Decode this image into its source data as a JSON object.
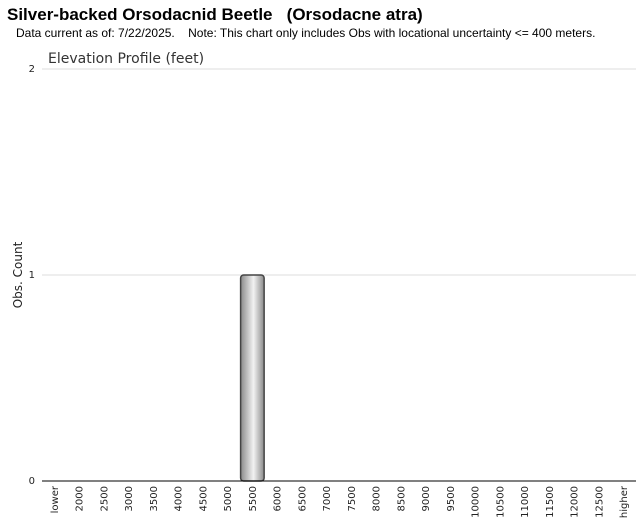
{
  "header": {
    "title": "Silver-backed Orsodacnid Beetle   (Orsodacne atra)",
    "subtitle": "Data current as of: 7/22/2025.    Note: This chart only includes Obs with locational uncertainty <= 400 meters."
  },
  "chart_data": {
    "type": "bar",
    "title": "Elevation Profile (feet)",
    "xlabel": "",
    "ylabel": "Obs. Count",
    "categories": [
      "lower",
      "2000",
      "2500",
      "3000",
      "3500",
      "4000",
      "4500",
      "5000",
      "5500",
      "6000",
      "6500",
      "7000",
      "7500",
      "8000",
      "8500",
      "9000",
      "9500",
      "10000",
      "10500",
      "11000",
      "11500",
      "12000",
      "12500",
      "higher"
    ],
    "values": [
      0,
      0,
      0,
      0,
      0,
      0,
      0,
      0,
      1,
      0,
      0,
      0,
      0,
      0,
      0,
      0,
      0,
      0,
      0,
      0,
      0,
      0,
      0,
      0
    ],
    "ylim": [
      0,
      2
    ],
    "yticks": [
      0,
      1,
      2
    ],
    "grid": true,
    "legend": "none",
    "colors": {
      "bar_edge": "#444444",
      "bar_dark": "#8a8a8a",
      "bar_light": "#f2f2f2",
      "grid": "#dddddd",
      "axis": "#000000"
    }
  }
}
